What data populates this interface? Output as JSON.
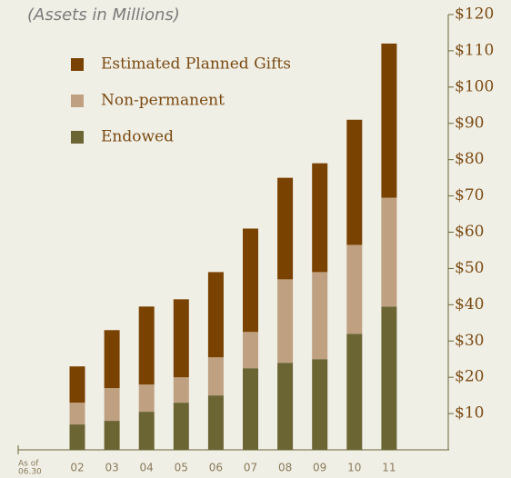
{
  "chart_data": {
    "type": "stacked_bar",
    "subtitle": "(Assets in Millions)",
    "annotation": [
      "As of",
      "06.30"
    ],
    "categories": [
      "02",
      "03",
      "04",
      "05",
      "06",
      "07",
      "08",
      "09",
      "10",
      "11"
    ],
    "series": [
      {
        "name": "Endowed",
        "color": "#6b6534",
        "values": [
          7,
          8,
          10.5,
          13,
          15,
          22.5,
          24,
          25,
          32,
          39.5
        ]
      },
      {
        "name": "Non-permanent",
        "color": "#bfa182",
        "values": [
          6,
          9,
          7.5,
          7,
          10.5,
          10,
          23,
          24,
          24.5,
          30
        ]
      },
      {
        "name": "Estimated Planned Gifts",
        "color": "#7a4200",
        "values": [
          10,
          16,
          21.5,
          21.5,
          23.5,
          28.5,
          28,
          30,
          34.5,
          42.5
        ]
      }
    ],
    "ylim": [
      0,
      120
    ],
    "yticks": [
      {
        "value": 10,
        "label": "$10"
      },
      {
        "value": 20,
        "label": "$20"
      },
      {
        "value": 30,
        "label": "$30"
      },
      {
        "value": 40,
        "label": "$40"
      },
      {
        "value": 50,
        "label": "$50"
      },
      {
        "value": 60,
        "label": "$60"
      },
      {
        "value": 70,
        "label": "$70"
      },
      {
        "value": 80,
        "label": "$80"
      },
      {
        "value": 90,
        "label": "$90"
      },
      {
        "value": 100,
        "label": "$100"
      },
      {
        "value": 110,
        "label": "$110"
      },
      {
        "value": 120,
        "label": "$120"
      }
    ],
    "legend": "top-left",
    "axis_side": "right"
  }
}
